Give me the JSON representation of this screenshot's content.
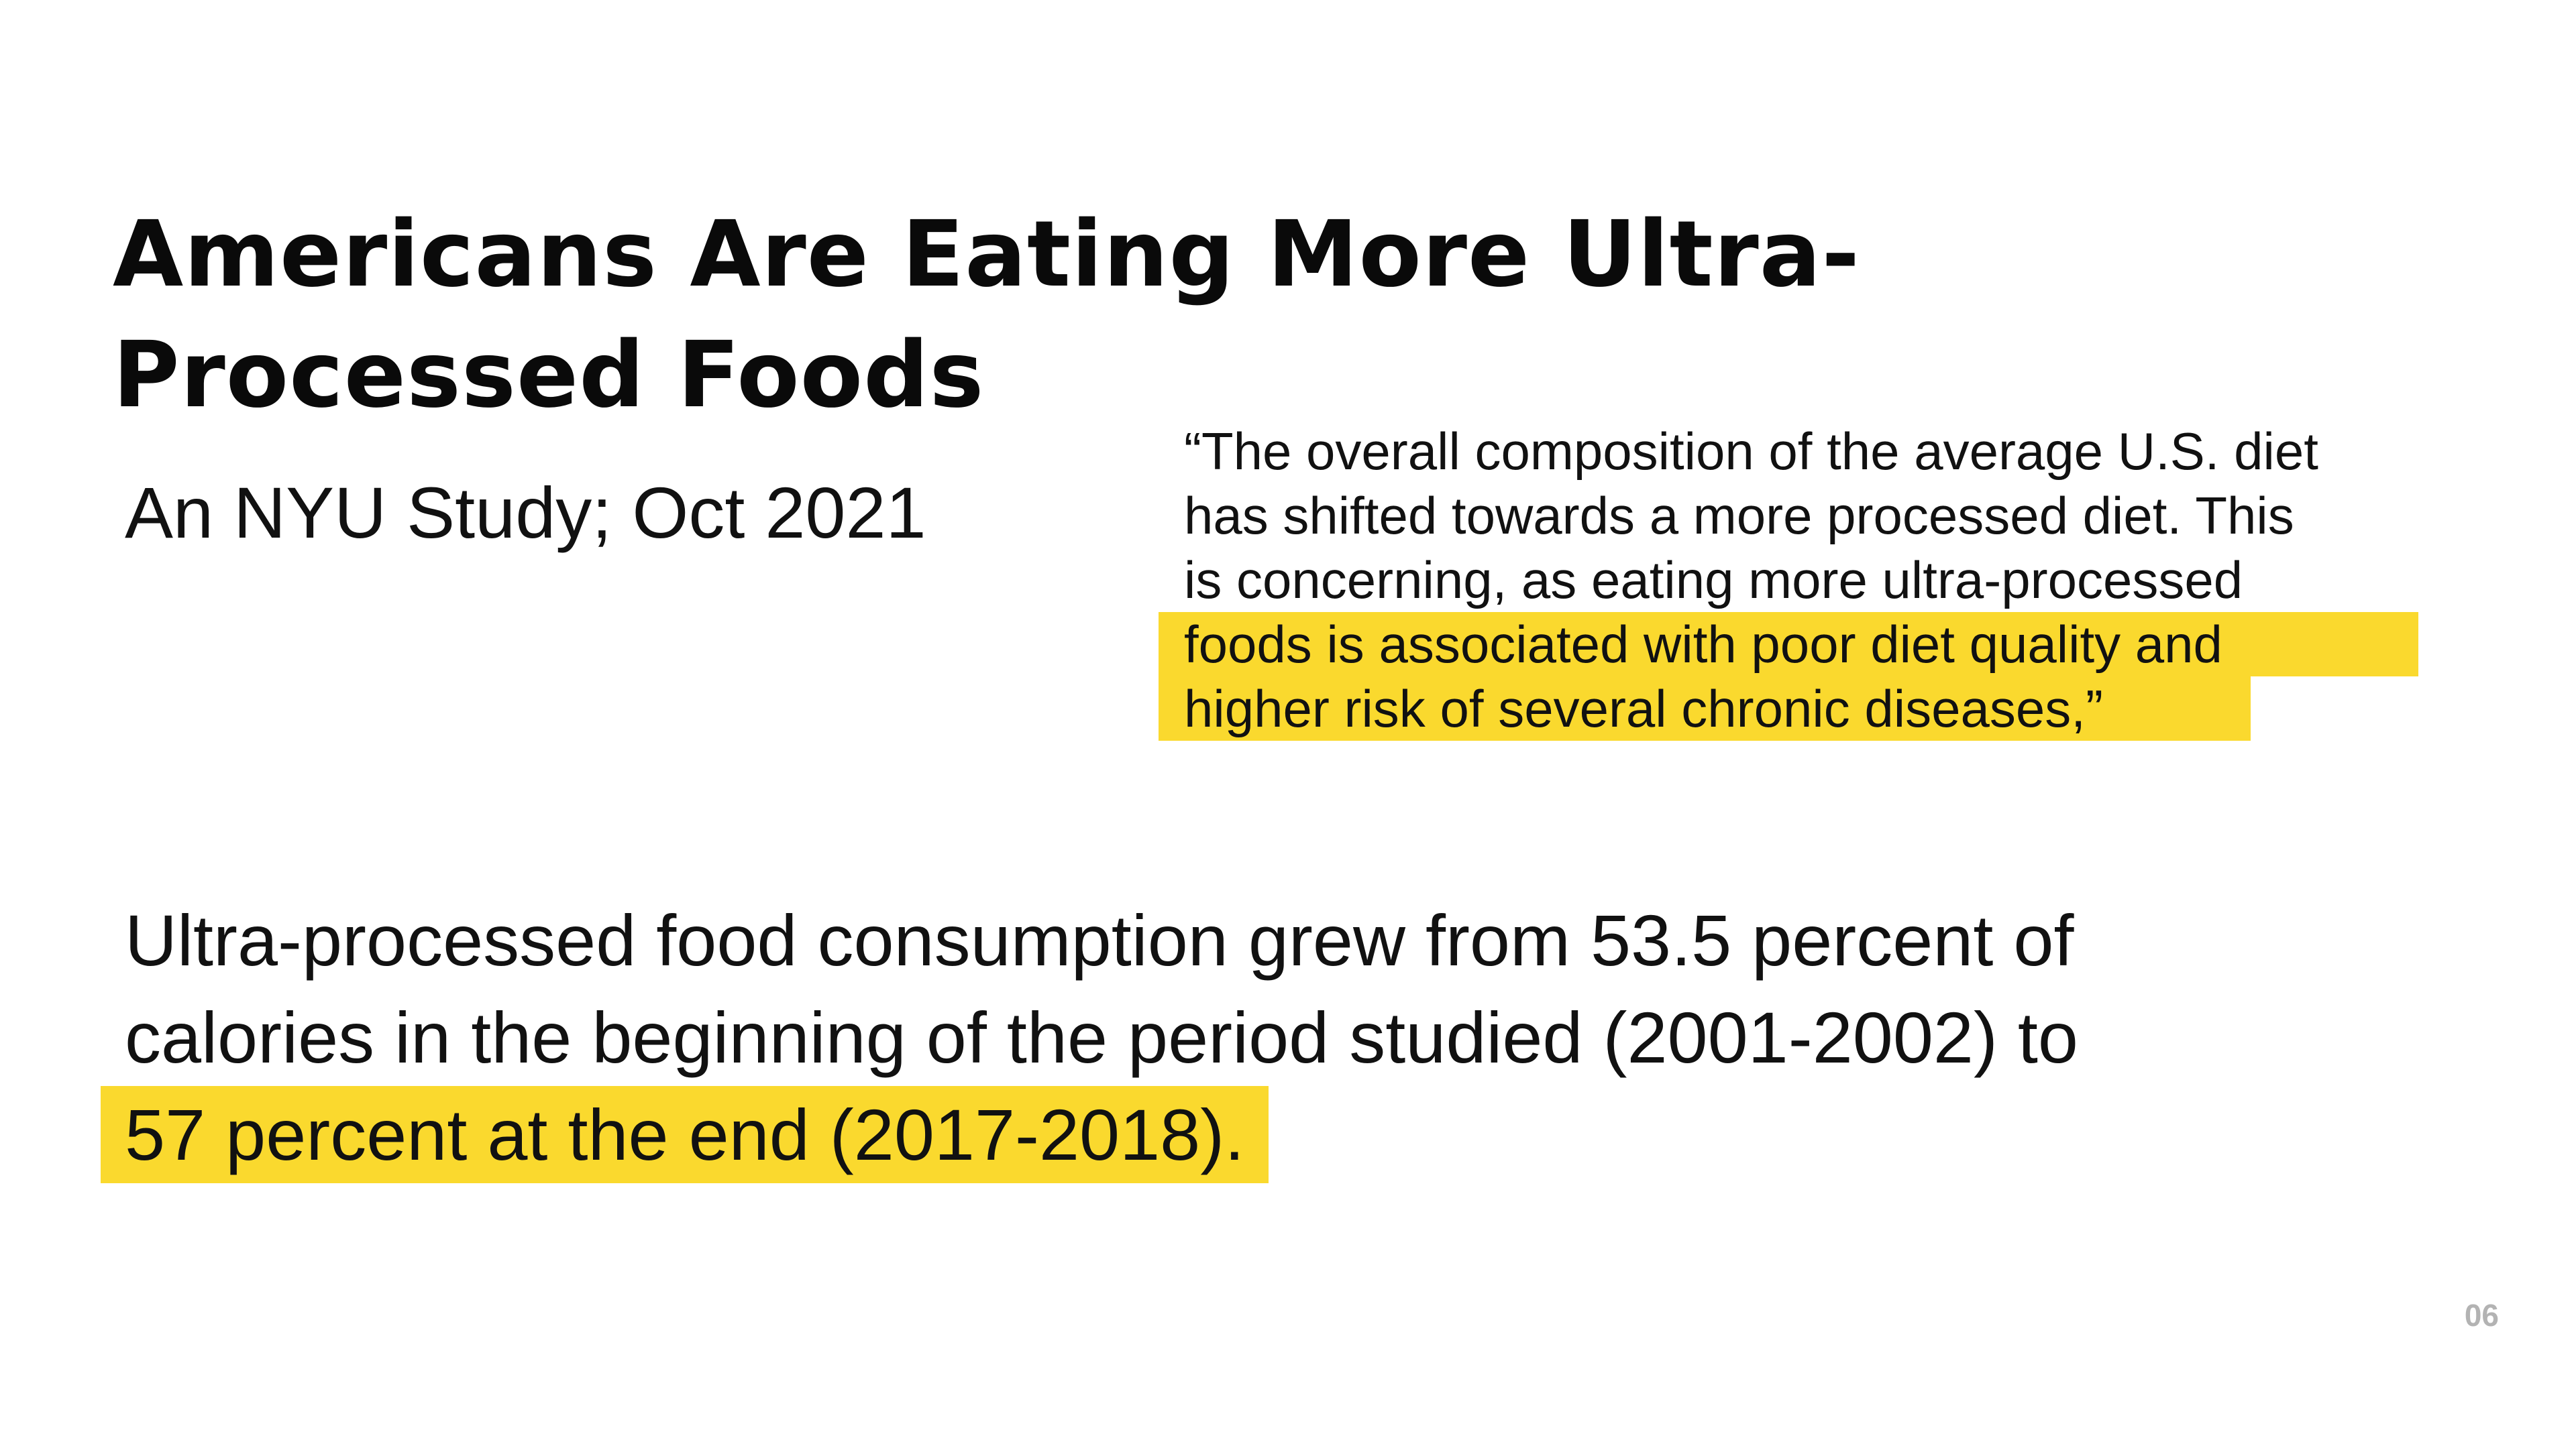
{
  "slide": {
    "title_lines": [
      "Americans Are Eating More Ultra-",
      "Processed Foods"
    ],
    "subtitle": "An NYU Study; Oct 2021",
    "quote": {
      "lines": [
        "“The overall composition of the average U.S. diet",
        "has shifted towards a more processed diet. This",
        "is concerning, as eating more ultra-processed",
        "foods is associated with poor diet quality and",
        "higher risk of several chronic diseases,”"
      ]
    },
    "body": {
      "lines": [
        "Ultra-processed food consumption grew from 53.5 percent of",
        "calories in the beginning of the period studied (2001-2002) to",
        "57 percent at the end (2017-2018)."
      ]
    },
    "page_number": "06",
    "highlight_color": "#fad92e"
  }
}
